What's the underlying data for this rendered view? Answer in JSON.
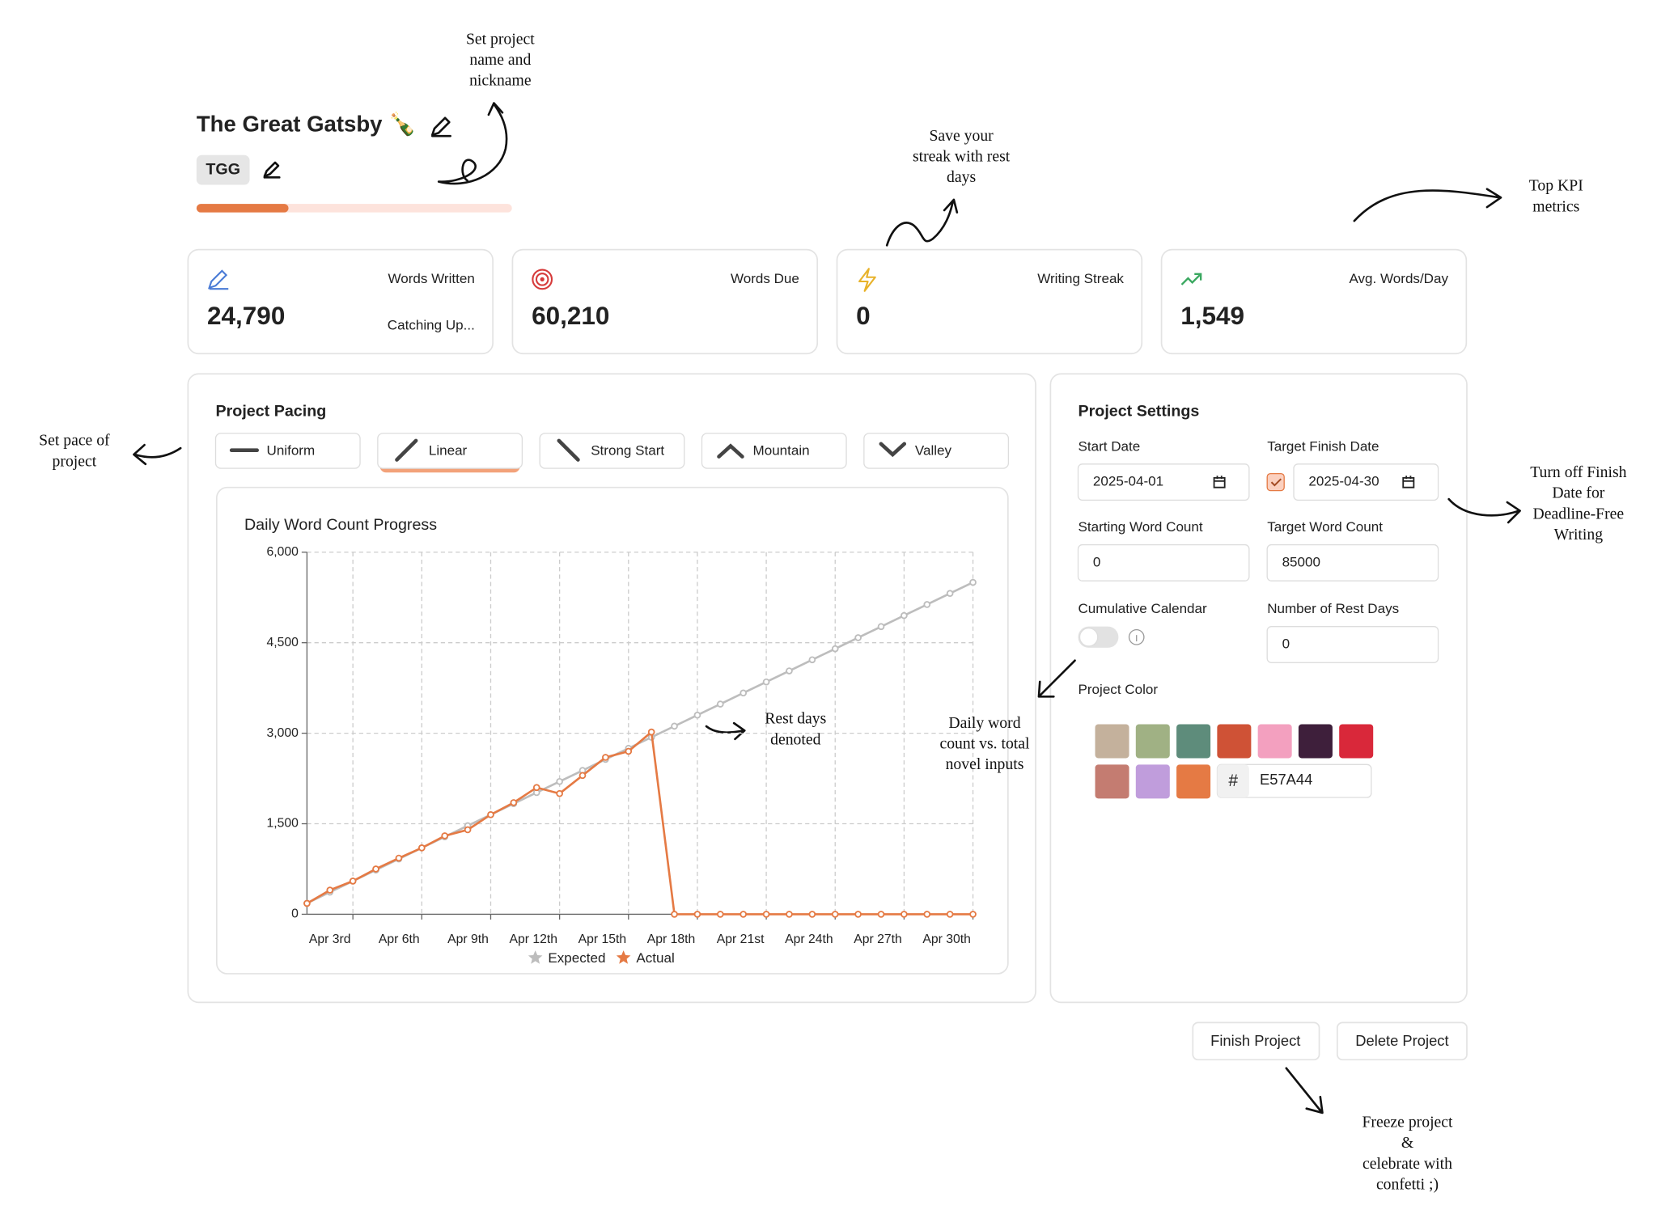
{
  "project": {
    "title": "The Great Gatsby 🍾",
    "nickname": "TGG"
  },
  "kpis": [
    {
      "label": "Words Written",
      "value": "24,790",
      "status": "Catching Up..."
    },
    {
      "label": "Words Due",
      "value": "60,210"
    },
    {
      "label": "Writing Streak",
      "value": "0"
    },
    {
      "label": "Avg. Words/Day",
      "value": "1,549"
    }
  ],
  "pacing": {
    "title": "Project Pacing",
    "options": [
      "Uniform",
      "Linear",
      "Strong Start",
      "Mountain",
      "Valley"
    ],
    "selected_index": 1
  },
  "chart_data": {
    "type": "line",
    "title": "Daily Word Count Progress",
    "categories": [
      null,
      null,
      "Apr 3rd",
      null,
      null,
      "Apr 6th",
      null,
      null,
      "Apr 9th",
      null,
      null,
      "Apr 12th",
      null,
      null,
      "Apr 15th",
      null,
      null,
      "Apr 18th",
      null,
      null,
      "Apr 21st",
      null,
      null,
      "Apr 24th",
      null,
      null,
      "Apr 27th",
      null,
      null,
      "Apr 30th"
    ],
    "series": [
      {
        "name": "Expected",
        "color": "#bdbdbd",
        "values": [
          183,
          367,
          550,
          733,
          917,
          1100,
          1283,
          1467,
          1650,
          1833,
          2017,
          2200,
          2383,
          2567,
          2750,
          2933,
          3117,
          3300,
          3483,
          3667,
          3850,
          4033,
          4217,
          4400,
          4583,
          4767,
          4950,
          5133,
          5317,
          5500
        ]
      },
      {
        "name": "Actual",
        "color": "#e57a44",
        "values": [
          180,
          400,
          550,
          750,
          930,
          1100,
          1300,
          1400,
          1650,
          1850,
          2100,
          2000,
          2300,
          2600,
          2700,
          3020,
          0,
          0,
          0,
          0,
          0,
          0,
          0,
          0,
          0,
          0,
          0,
          0,
          0,
          0
        ]
      }
    ],
    "ylim": [
      0,
      6000
    ],
    "yticks": [
      0,
      {
        "value": 1500,
        "label": "1,500"
      },
      {
        "value": 3000,
        "label": "3,000"
      },
      {
        "value": 4500,
        "label": "4,500"
      },
      {
        "value": 6000,
        "label": "6,000"
      }
    ],
    "grid": true,
    "legend": "bottom"
  },
  "settings": {
    "title": "Project Settings",
    "fields": [
      {
        "label": "Start Date",
        "value": "2025-04-01",
        "kind": "date"
      },
      {
        "label": "Target Finish Date",
        "value": "2025-04-30",
        "kind": "date",
        "checked": true
      },
      {
        "label": "Starting Word Count",
        "value": "0",
        "kind": "number"
      },
      {
        "label": "Target Word Count",
        "value": "85000",
        "kind": "number"
      },
      {
        "label": "Cumulative Calendar",
        "kind": "toggle",
        "enabled": false
      },
      {
        "label": "Number of Rest Days",
        "value": "0",
        "kind": "number"
      }
    ],
    "color_label": "Project Color",
    "colors": [
      "#c4b19c",
      "#a0b184",
      "#5e8c7b",
      "#cf5236",
      "#f3a0bf",
      "#3e1f3b",
      "#d9283a",
      "#c47c71",
      "#c09ddc",
      "#e57a44"
    ],
    "hex_prefix": "#",
    "hex_value": "E57A44"
  },
  "buttons": [
    "Finish Project",
    "Delete Project"
  ],
  "annotations": [
    {
      "lines": [
        "Set project",
        "name and",
        "nickname"
      ]
    },
    {
      "lines": [
        "Save your",
        "streak with rest",
        "days"
      ]
    },
    {
      "lines": [
        "Top KPI",
        "metrics"
      ]
    },
    {
      "lines": [
        "Set pace of",
        "project"
      ]
    },
    {
      "lines": [
        "Turn off Finish",
        "Date for",
        "Deadline-Free",
        "Writing"
      ]
    },
    {
      "lines": [
        "Rest days",
        "denoted"
      ]
    },
    {
      "lines": [
        "Daily word",
        "count vs. total",
        "novel inputs"
      ]
    },
    {
      "lines": [
        "Freeze project",
        "&",
        "celebrate with",
        "confetti ;)"
      ]
    }
  ]
}
